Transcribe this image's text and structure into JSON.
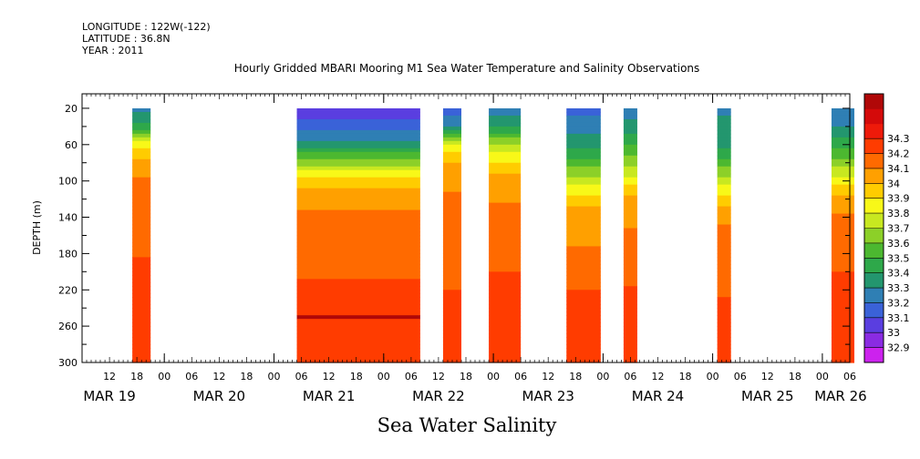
{
  "header": {
    "longitude": "LONGITUDE : 122W(-122)",
    "latitude": "LATITUDE : 36.8N",
    "year": "YEAR : 2011"
  },
  "title": "Hourly Gridded MBARI Mooring M1 Sea Water Temperature and Salinity Observations",
  "variable_label": "Sea Water Salinity",
  "chart_data": {
    "type": "heatmap",
    "title": "Hourly Gridded MBARI Mooring M1 Sea Water Temperature and Salinity Observations",
    "xlabel": "",
    "ylabel": "DEPTH (m)",
    "x_unit": "hours since MAR 19 00:00",
    "xlim": [
      6,
      174
    ],
    "ylim": [
      300,
      4
    ],
    "y_ticks": [
      20,
      60,
      100,
      140,
      180,
      220,
      260,
      300
    ],
    "x_hour_ticks": [
      {
        "h": 12,
        "label": "12"
      },
      {
        "h": 18,
        "label": "18"
      },
      {
        "h": 24,
        "label": "00"
      },
      {
        "h": 30,
        "label": "06"
      },
      {
        "h": 36,
        "label": "12"
      },
      {
        "h": 42,
        "label": "18"
      },
      {
        "h": 48,
        "label": "00"
      },
      {
        "h": 54,
        "label": "06"
      },
      {
        "h": 60,
        "label": "12"
      },
      {
        "h": 66,
        "label": "18"
      },
      {
        "h": 72,
        "label": "00"
      },
      {
        "h": 78,
        "label": "06"
      },
      {
        "h": 84,
        "label": "12"
      },
      {
        "h": 90,
        "label": "18"
      },
      {
        "h": 96,
        "label": "00"
      },
      {
        "h": 102,
        "label": "06"
      },
      {
        "h": 108,
        "label": "12"
      },
      {
        "h": 114,
        "label": "18"
      },
      {
        "h": 120,
        "label": "00"
      },
      {
        "h": 126,
        "label": "06"
      },
      {
        "h": 132,
        "label": "12"
      },
      {
        "h": 138,
        "label": "18"
      },
      {
        "h": 144,
        "label": "00"
      },
      {
        "h": 150,
        "label": "06"
      },
      {
        "h": 156,
        "label": "12"
      },
      {
        "h": 162,
        "label": "18"
      },
      {
        "h": 168,
        "label": "00"
      },
      {
        "h": 174,
        "label": "06"
      }
    ],
    "x_day_labels": [
      {
        "h": 12,
        "label": "MAR 19"
      },
      {
        "h": 36,
        "label": "MAR 20"
      },
      {
        "h": 60,
        "label": "MAR 21"
      },
      {
        "h": 84,
        "label": "MAR 22"
      },
      {
        "h": 108,
        "label": "MAR 23"
      },
      {
        "h": 132,
        "label": "MAR 24"
      },
      {
        "h": 156,
        "label": "MAR 25"
      },
      {
        "h": 172,
        "label": "MAR 26"
      }
    ],
    "colorbar": {
      "levels": [
        32.9,
        33,
        33.1,
        33.2,
        33.3,
        33.4,
        33.5,
        33.6,
        33.7,
        33.8,
        33.9,
        34,
        34.1,
        34.2,
        34.3
      ],
      "labels": [
        "32.9",
        "33",
        "33.1",
        "33.2",
        "33.3",
        "33.4",
        "33.5",
        "33.6",
        "33.7",
        "33.8",
        "33.9",
        "34",
        "34.1",
        "34.2",
        "34.3"
      ],
      "colors": [
        "#cc22ee",
        "#8a2be2",
        "#5a3ee0",
        "#3a62d8",
        "#2f7fb4",
        "#23966e",
        "#2ea84a",
        "#4cb830",
        "#8cd028",
        "#c8e820",
        "#f8f818",
        "#ffcc00",
        "#ffa000",
        "#ff6a00",
        "#ff3c00",
        "#ee1a0a",
        "#d40a0a",
        "#b00808"
      ]
    },
    "segments": [
      {
        "start": 17.0,
        "end": 21.0,
        "profile": [
          [
            20,
            33.25
          ],
          [
            40,
            33.45
          ],
          [
            60,
            33.85
          ],
          [
            80,
            34.05
          ],
          [
            100,
            34.12
          ],
          [
            140,
            34.15
          ],
          [
            200,
            34.22
          ],
          [
            240,
            34.25
          ],
          [
            260,
            34.28
          ],
          [
            300,
            34.25
          ]
        ]
      },
      {
        "start": 53.0,
        "end": 80.0,
        "profile": [
          [
            20,
            33.05
          ],
          [
            40,
            33.15
          ],
          [
            60,
            33.35
          ],
          [
            80,
            33.65
          ],
          [
            100,
            33.95
          ],
          [
            120,
            34.05
          ],
          [
            140,
            34.15
          ],
          [
            180,
            34.15
          ],
          [
            220,
            34.22
          ],
          [
            250,
            34.3
          ],
          [
            280,
            34.28
          ],
          [
            300,
            34.25
          ]
        ]
      },
      {
        "start": 85.0,
        "end": 89.0,
        "profile": [
          [
            20,
            33.15
          ],
          [
            40,
            33.3
          ],
          [
            60,
            33.8
          ],
          [
            80,
            34.0
          ],
          [
            120,
            34.12
          ],
          [
            180,
            34.15
          ],
          [
            220,
            34.2
          ],
          [
            260,
            34.25
          ],
          [
            300,
            34.25
          ]
        ]
      },
      {
        "start": 95.0,
        "end": 102.0,
        "profile": [
          [
            20,
            33.2
          ],
          [
            40,
            33.4
          ],
          [
            60,
            33.7
          ],
          [
            80,
            33.9
          ],
          [
            100,
            34.05
          ],
          [
            140,
            34.13
          ],
          [
            200,
            34.2
          ],
          [
            240,
            34.28
          ],
          [
            270,
            34.22
          ],
          [
            300,
            34.22
          ]
        ]
      },
      {
        "start": 112.0,
        "end": 119.5,
        "profile": [
          [
            20,
            33.15
          ],
          [
            40,
            33.25
          ],
          [
            60,
            33.35
          ],
          [
            100,
            33.75
          ],
          [
            120,
            33.95
          ],
          [
            140,
            34.05
          ],
          [
            200,
            34.15
          ],
          [
            240,
            34.25
          ],
          [
            300,
            34.25
          ]
        ]
      },
      {
        "start": 124.5,
        "end": 127.5,
        "profile": [
          [
            20,
            33.2
          ],
          [
            40,
            33.35
          ],
          [
            80,
            33.65
          ],
          [
            100,
            33.85
          ],
          [
            120,
            34.05
          ],
          [
            180,
            34.15
          ],
          [
            240,
            34.23
          ],
          [
            300,
            34.25
          ]
        ]
      },
      {
        "start": 145.0,
        "end": 148.0,
        "profile": [
          [
            20,
            33.28
          ],
          [
            60,
            33.38
          ],
          [
            80,
            33.55
          ],
          [
            100,
            33.75
          ],
          [
            130,
            34.0
          ],
          [
            150,
            34.1
          ],
          [
            200,
            34.15
          ],
          [
            240,
            34.22
          ],
          [
            300,
            34.2
          ]
        ]
      },
      {
        "start": 170.0,
        "end": 175.0,
        "profile": [
          [
            20,
            33.2
          ],
          [
            40,
            33.3
          ],
          [
            60,
            33.45
          ],
          [
            80,
            33.65
          ],
          [
            100,
            33.85
          ],
          [
            120,
            34.05
          ],
          [
            150,
            34.15
          ],
          [
            200,
            34.2
          ],
          [
            240,
            34.28
          ],
          [
            300,
            34.22
          ]
        ]
      }
    ]
  }
}
